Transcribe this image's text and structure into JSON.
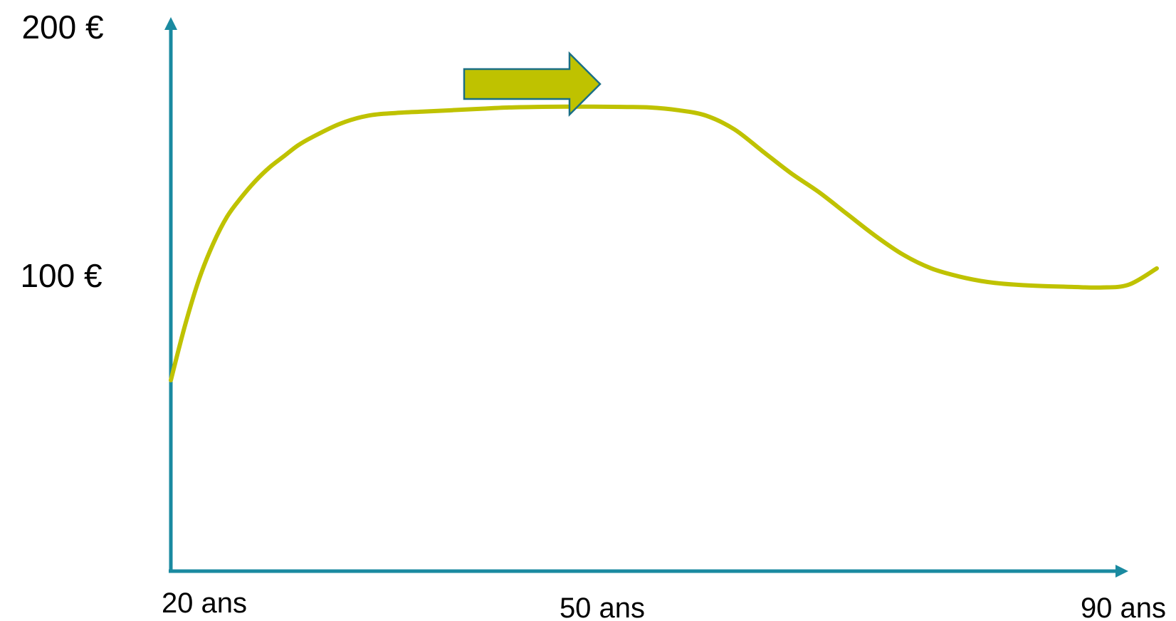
{
  "colors": {
    "axis": "#1a8aa0",
    "series": "#bfc200",
    "arrow_fill": "#bfc200",
    "arrow_stroke": "#1a6f86"
  },
  "chart_data": {
    "type": "line",
    "title": "",
    "xlabel": "",
    "ylabel": "",
    "xlim": [
      20,
      90
    ],
    "ylim": [
      0,
      200
    ],
    "grid": false,
    "y_ticks": [
      {
        "value": 100,
        "label": "100 €"
      },
      {
        "value": 200,
        "label": "200 €"
      }
    ],
    "x_ticks": [
      {
        "value": 20,
        "label": "20 ans"
      },
      {
        "value": 50,
        "label": "50 ans"
      },
      {
        "value": 90,
        "label": "90 ans"
      }
    ],
    "series": [
      {
        "x": [
          20,
          21,
          22,
          23,
          24,
          25,
          26,
          27,
          28,
          29,
          30,
          32,
          34,
          36,
          38,
          40,
          42,
          44,
          46,
          48,
          50,
          52,
          54,
          56,
          58,
          60,
          62,
          64,
          66,
          68,
          70,
          72,
          74,
          76,
          78,
          80,
          82,
          84,
          86,
          88,
          90
        ],
        "values": [
          70,
          90,
          107,
          120,
          130,
          137,
          143,
          148,
          152,
          156,
          159,
          164,
          167,
          168,
          168.5,
          169,
          169.5,
          170,
          170.2,
          170.3,
          170.3,
          170.2,
          170,
          169,
          167,
          162,
          154,
          146,
          139,
          131,
          123,
          116,
          111,
          108,
          106,
          105,
          104.5,
          104.2,
          104,
          105,
          111
        ]
      }
    ],
    "annotations": [
      {
        "type": "arrow",
        "direction": "right"
      }
    ]
  }
}
